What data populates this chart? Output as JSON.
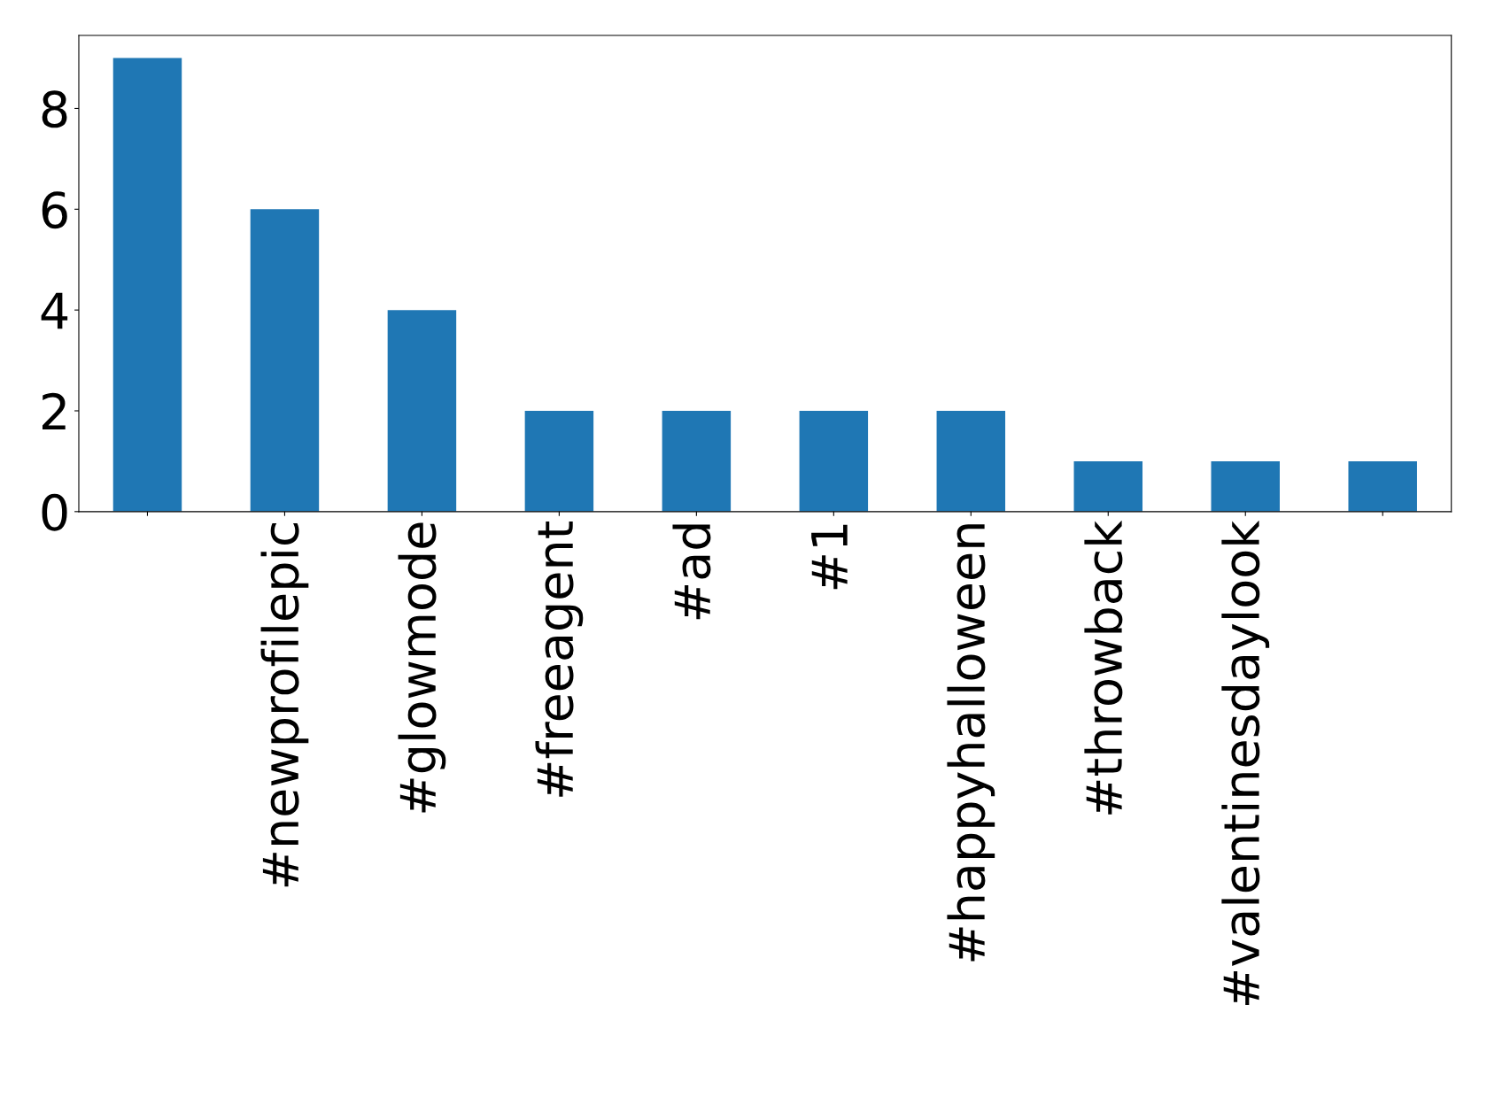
{
  "chart_data": {
    "type": "bar",
    "categories": [
      null,
      "#newprofilepic",
      "#glowmode",
      "#freeagent",
      "#ad",
      "#1",
      "#happyhalloween",
      "#throwback",
      "#valentinesdaylook",
      null
    ],
    "values": [
      9,
      6,
      4,
      2,
      2,
      2,
      2,
      1,
      1,
      1
    ],
    "color": "#1f77b4",
    "ylim": [
      0,
      9.45
    ],
    "yticks": [
      0,
      2,
      4,
      6,
      8
    ],
    "grid": false,
    "legend": false
  }
}
